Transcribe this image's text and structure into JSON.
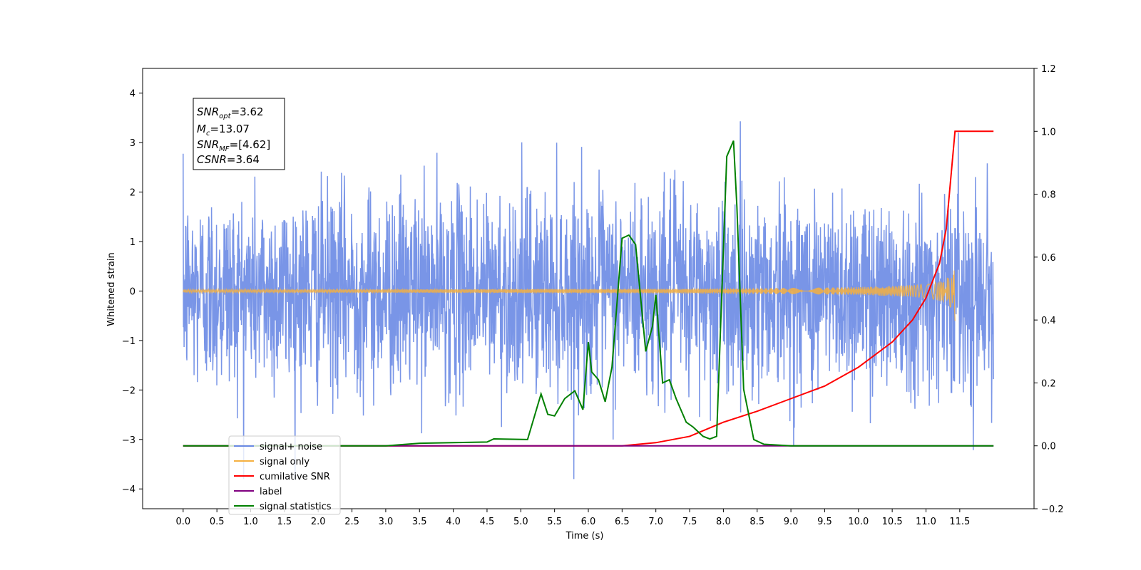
{
  "chart_data": {
    "type": "line",
    "xlabel": "Time (s)",
    "ylabel": "Whitened strain",
    "x_ticks": [
      "0.0",
      "0.5",
      "1.0",
      "1.5",
      "2.0",
      "2.5",
      "3.0",
      "3.5",
      "4.0",
      "4.5",
      "5.0",
      "5.5",
      "6.0",
      "6.5",
      "7.0",
      "7.5",
      "8.0",
      "8.5",
      "9.0",
      "9.5",
      "10.0",
      "10.5",
      "11.0",
      "11.5"
    ],
    "xlim": [
      -0.6,
      12.6
    ],
    "ylim_left": [
      -4.4,
      4.5
    ],
    "y_ticks_left": [
      "4",
      "3",
      "2",
      "1",
      "0",
      "−1",
      "−2",
      "−3",
      "−4"
    ],
    "ylim_right": [
      -0.2,
      1.2
    ],
    "y_ticks_right": [
      "1.2",
      "1.0",
      "0.8",
      "0.6",
      "0.4",
      "0.2",
      "0.0",
      "−0.2"
    ],
    "annotation": {
      "snr_opt": {
        "main": "SNR",
        "sub": "opt",
        "value": "=3.62"
      },
      "mc": {
        "main": "M",
        "sub": "c",
        "value": "=13.07"
      },
      "snr_mf": {
        "main": "SNR",
        "sub": "MF",
        "value": "=[4.62]"
      },
      "csnr": {
        "main": "CSNR",
        "value": "=3.64"
      }
    },
    "legend_position": "lower-left",
    "series": [
      {
        "name": "signal+ noise",
        "color": "#6a8ae4",
        "axis": "left",
        "kind": "noise",
        "x_range": [
          0,
          12
        ],
        "std": 1.0
      },
      {
        "name": "signal only",
        "color": "#f5b041",
        "axis": "left",
        "kind": "chirp",
        "x_range": [
          0,
          11.43
        ],
        "peak_amplitude": 0.7
      },
      {
        "name": "cumilative SNR",
        "color": "#ff0000",
        "axis": "right",
        "x": [
          0,
          6.5,
          7.0,
          7.5,
          8.0,
          8.5,
          9.0,
          9.5,
          10.0,
          10.5,
          10.8,
          11.0,
          11.2,
          11.3,
          11.43,
          12.0
        ],
        "y": [
          0,
          0,
          0.01,
          0.03,
          0.075,
          0.11,
          0.15,
          0.19,
          0.25,
          0.33,
          0.4,
          0.47,
          0.58,
          0.69,
          1.0,
          1.0
        ]
      },
      {
        "name": "label",
        "color": "#800080",
        "axis": "right",
        "x": [
          0,
          12
        ],
        "y": [
          0,
          0
        ]
      },
      {
        "name": "signal statistics",
        "color": "#008000",
        "axis": "right",
        "x": [
          0,
          3.0,
          3.5,
          4.0,
          4.5,
          4.6,
          5.1,
          5.3,
          5.4,
          5.5,
          5.65,
          5.8,
          5.92,
          6.0,
          6.05,
          6.15,
          6.25,
          6.35,
          6.5,
          6.6,
          6.7,
          6.85,
          6.95,
          7.0,
          7.1,
          7.2,
          7.3,
          7.45,
          7.55,
          7.7,
          7.8,
          7.9,
          8.05,
          8.15,
          8.2,
          8.3,
          8.45,
          8.6,
          9.0,
          12.0
        ],
        "y": [
          0,
          0,
          0.008,
          0.01,
          0.012,
          0.022,
          0.02,
          0.165,
          0.1,
          0.095,
          0.15,
          0.175,
          0.115,
          0.33,
          0.235,
          0.21,
          0.14,
          0.25,
          0.66,
          0.67,
          0.64,
          0.3,
          0.38,
          0.48,
          0.2,
          0.21,
          0.15,
          0.075,
          0.06,
          0.03,
          0.022,
          0.03,
          0.92,
          0.97,
          0.76,
          0.18,
          0.02,
          0.005,
          0,
          0
        ]
      }
    ]
  }
}
